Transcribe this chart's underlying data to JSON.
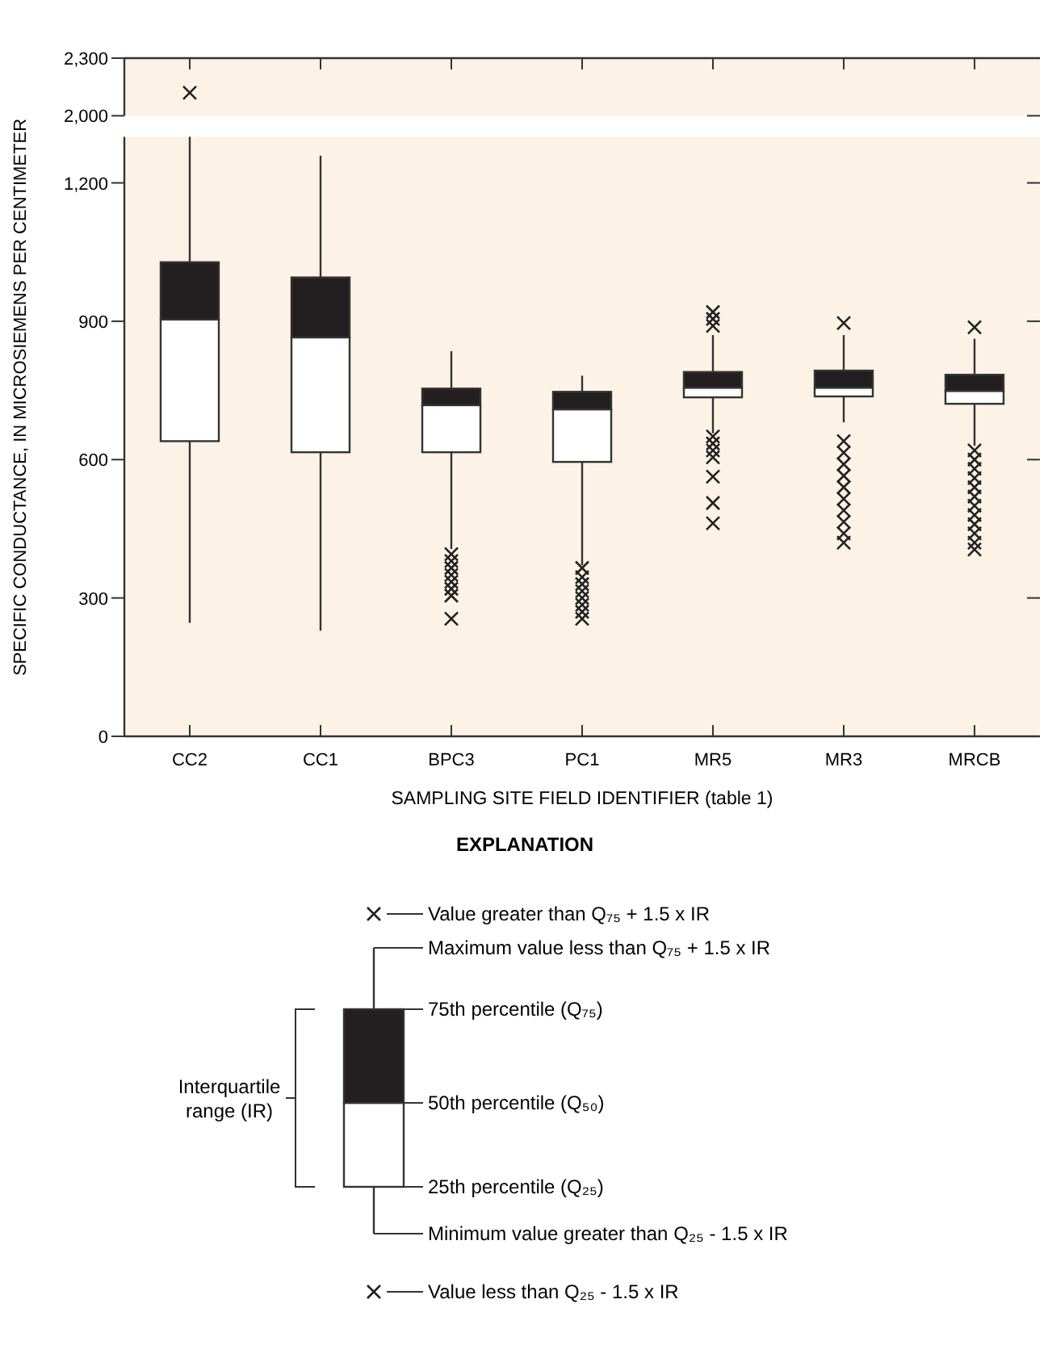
{
  "chart_data": [
    {
      "type": "scatter",
      "categories": [
        "CC2",
        "CC1",
        "BPC3",
        "PC1",
        "MR5",
        "MR3",
        "MRCB"
      ],
      "series": [
        {
          "x": [
            "CC2"
          ],
          "values": [
            2120
          ]
        }
      ],
      "ylim": [
        2000,
        2300
      ],
      "yticks": [
        {
          "value": 2000,
          "label": "2,000"
        },
        {
          "value": 2300,
          "label": "2,300"
        }
      ],
      "tick_labels": "y",
      "marker": "cross"
    },
    {
      "type": "box",
      "categories": [
        "CC2",
        "CC1",
        "BPC3",
        "PC1",
        "MR5",
        "MR3",
        "MRCB"
      ],
      "boxes": [
        {
          "low": 246,
          "q1": 640,
          "median": 904,
          "q3": 1028,
          "high": 1300
        },
        {
          "low": 229,
          "q1": 616,
          "median": 865,
          "q3": 995,
          "high": 1259
        },
        {
          "low": 406,
          "q1": 616,
          "median": 718,
          "q3": 754,
          "high": 835,
          "outliers": [
            395,
            380,
            365,
            350,
            335,
            320,
            305,
            255
          ]
        },
        {
          "low": 371,
          "q1": 595,
          "median": 709,
          "q3": 747,
          "high": 782,
          "outliers": [
            365,
            345,
            330,
            315,
            300,
            285,
            270,
            255
          ]
        },
        {
          "low": 657,
          "q1": 735,
          "median": 756,
          "q3": 790,
          "high": 870,
          "outliers": [
            920,
            905,
            890,
            650,
            635,
            620,
            605,
            563,
            506,
            462
          ]
        },
        {
          "low": 681,
          "q1": 737,
          "median": 756,
          "q3": 793,
          "high": 870,
          "outliers": [
            896,
            640,
            615,
            590,
            565,
            540,
            515,
            490,
            465,
            440,
            420
          ]
        },
        {
          "low": 630,
          "q1": 721,
          "median": 749,
          "q3": 784,
          "high": 862,
          "outliers": [
            887,
            620,
            600,
            580,
            560,
            540,
            520,
            500,
            480,
            460,
            440,
            420,
            405
          ]
        }
      ],
      "ylim": [
        0,
        1300
      ],
      "yticks": [
        0,
        300,
        600,
        900,
        {
          "value": 1200,
          "label": "1,200"
        }
      ],
      "marker": "cross",
      "xlabel": "SAMPLING SITE FIELD IDENTIFIER (table 1)",
      "ylabel": "SPECIFIC CONDUCTANCE, IN MICROSIEMENS PER CENTIMETER",
      "annotations": [
        "EXPLANATION",
        "Value greater than Q₇₅ + 1.5 x IR",
        "Maximum value less than Q₇₅ + 1.5 x IR",
        "75th percentile (Q₇₅)",
        "50th percentile (Q₅₀)",
        "25th percentile (Q₂₅)",
        "Minimum value greater than Q₂₅ - 1.5 x IR",
        "Value less than Q₂₅ - 1.5 x IR",
        "Interquartile range (IR)"
      ]
    }
  ]
}
